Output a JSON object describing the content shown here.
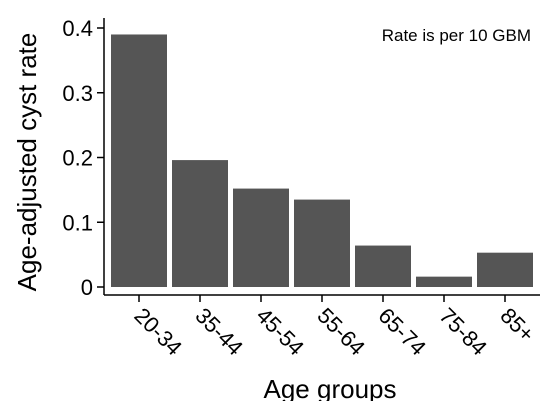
{
  "chart_data": {
    "type": "bar",
    "categories": [
      "20-34",
      "35-44",
      "45-54",
      "55-64",
      "65-74",
      "75-84",
      "85+"
    ],
    "values": [
      0.39,
      0.196,
      0.152,
      0.135,
      0.064,
      0.016,
      0.053
    ],
    "xlabel": "Age groups",
    "ylabel": "Age-adjusted cyst rate",
    "ylim": [
      0,
      0.4
    ],
    "yticks": [
      0,
      0.1,
      0.2,
      0.3,
      0.4
    ],
    "ytick_labels": [
      "0",
      "0.1",
      "0.2",
      "0.3",
      "0.4"
    ],
    "annotation": "Rate is per 10 GBM",
    "grid": false,
    "colors": {
      "bar": "#555555",
      "axis": "#000000"
    }
  }
}
